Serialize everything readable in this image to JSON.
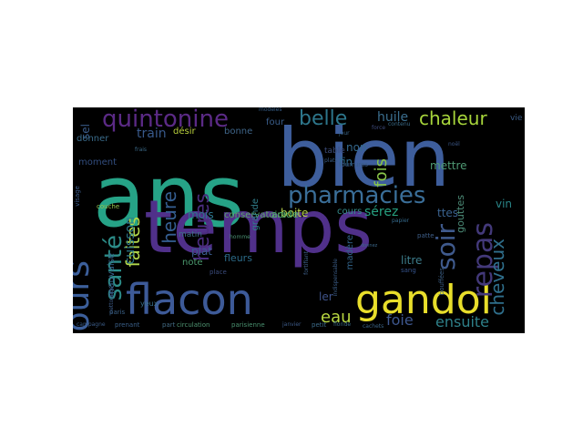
{
  "words": [
    {
      "text": "ans",
      "color": "#26a387"
    },
    {
      "text": "bien",
      "color": "#3e5e9c"
    },
    {
      "text": "temps",
      "color": "#50308a"
    },
    {
      "text": "gandol",
      "color": "#e8de2b"
    },
    {
      "text": "flacon",
      "color": "#3d5a98"
    },
    {
      "text": "pharmacies",
      "color": "#3a6e98"
    },
    {
      "text": "quintonine",
      "color": "#5b2a86"
    },
    {
      "text": "jours",
      "color": "#3c5f9b"
    },
    {
      "text": "repas",
      "color": "#43397a"
    },
    {
      "text": "santé",
      "color": "#2c8c88"
    },
    {
      "text": "soir",
      "color": "#3f5a8d"
    },
    {
      "text": "belle",
      "color": "#2d768b"
    },
    {
      "text": "chaleur",
      "color": "#a7d53b"
    },
    {
      "text": "fois",
      "color": "#8ac64a"
    },
    {
      "text": "heures",
      "color": "#4a2c7d"
    },
    {
      "text": "faites",
      "color": "#b1d64a"
    },
    {
      "text": "heure",
      "color": "#355f92"
    },
    {
      "text": "cheveux",
      "color": "#2f6f8c"
    },
    {
      "text": "foie",
      "color": "#3e578e"
    },
    {
      "text": "ensuite",
      "color": "#2e8089"
    },
    {
      "text": "eau",
      "color": "#b9d841"
    },
    {
      "text": "huile",
      "color": "#3b6e8e"
    },
    {
      "text": "train",
      "color": "#38598a"
    },
    {
      "text": "cuisson",
      "color": "#2c798c"
    },
    {
      "text": "sérez",
      "color": "#26a080"
    },
    {
      "text": "vin",
      "color": "#2a8689"
    },
    {
      "text": "mois",
      "color": "#2d768d"
    },
    {
      "text": "plat",
      "color": "#3b5c8f"
    },
    {
      "text": "boite",
      "color": "#b9d44b"
    },
    {
      "text": "ttes",
      "color": "#3a6390"
    },
    {
      "text": "fin",
      "color": "#2f6b8e"
    },
    {
      "text": "mettre",
      "color": "#4f9a74"
    },
    {
      "text": "acide",
      "color": "#4ab072"
    },
    {
      "text": "conservatoire",
      "color": "#5aa66a"
    },
    {
      "text": "ler",
      "color": "#3f538a"
    },
    {
      "text": "cours",
      "color": "#358c8c"
    },
    {
      "text": "litre",
      "color": "#3d7d8c"
    },
    {
      "text": "non",
      "color": "#35698e"
    },
    {
      "text": "désir",
      "color": "#b8cf3c"
    },
    {
      "text": "bonne",
      "color": "#3f6589"
    },
    {
      "text": "grande",
      "color": "#2f7d8a"
    },
    {
      "text": "fleurs",
      "color": "#2c6b89"
    },
    {
      "text": "note",
      "color": "#4b9a6e"
    },
    {
      "text": "place",
      "color": "#3a4b7b"
    },
    {
      "text": "sel",
      "color": "#3a5c8a"
    },
    {
      "text": "moment",
      "color": "#324d7e"
    },
    {
      "text": "donner",
      "color": "#3a6b8a"
    },
    {
      "text": "four",
      "color": "#3a5d8a"
    },
    {
      "text": "matin",
      "color": "#3e6e88"
    },
    {
      "text": "mauvaise",
      "color": "#35618a"
    },
    {
      "text": "madère",
      "color": "#32638a"
    },
    {
      "text": "gouttes",
      "color": "#4c8b77"
    },
    {
      "text": "table",
      "color": "#3d4d7c"
    },
    {
      "text": "visage",
      "color": "#3e5d8b"
    },
    {
      "text": "yeux",
      "color": "#3a6e8b"
    },
    {
      "text": "circulation",
      "color": "#4f9673"
    },
    {
      "text": "parisienne",
      "color": "#49916f"
    },
    {
      "text": "janvier",
      "color": "#3d5a88"
    },
    {
      "text": "petit",
      "color": "#3c6b8a"
    },
    {
      "text": "sang",
      "color": "#34528a"
    },
    {
      "text": "homme",
      "color": "#4a8f72"
    },
    {
      "text": "patte",
      "color": "#3e5e88"
    },
    {
      "text": "prenant",
      "color": "#3a5f88"
    },
    {
      "text": "part",
      "color": "#436b84"
    },
    {
      "text": "modèles",
      "color": "#355c86"
    },
    {
      "text": "jour",
      "color": "#3b6789"
    },
    {
      "text": "couche",
      "color": "#94c24d"
    },
    {
      "text": "frais",
      "color": "#3b6987"
    },
    {
      "text": "papier",
      "color": "#356a8c"
    },
    {
      "text": "fortifiant",
      "color": "#3d5e86"
    },
    {
      "text": "noël",
      "color": "#3a5583"
    },
    {
      "text": "force",
      "color": "#3d4a7b"
    },
    {
      "text": "plats",
      "color": "#3a5c86"
    },
    {
      "text": "donnez",
      "color": "#3b6688"
    },
    {
      "text": "bouffées",
      "color": "#3c5f86"
    },
    {
      "text": "nettoyage",
      "color": "#3d5b87"
    },
    {
      "text": "cachets",
      "color": "#3b6486"
    },
    {
      "text": "contenu",
      "color": "#3a6b88"
    },
    {
      "text": "vie",
      "color": "#3b5c86"
    },
    {
      "text": "fourrures",
      "color": "#3a5b88"
    },
    {
      "text": "paris",
      "color": "#3a6086"
    },
    {
      "text": "indispensable",
      "color": "#3b5c86"
    },
    {
      "text": "floride",
      "color": "#3c6a86"
    },
    {
      "text": "campagne",
      "color": "#3a5a85"
    }
  ]
}
